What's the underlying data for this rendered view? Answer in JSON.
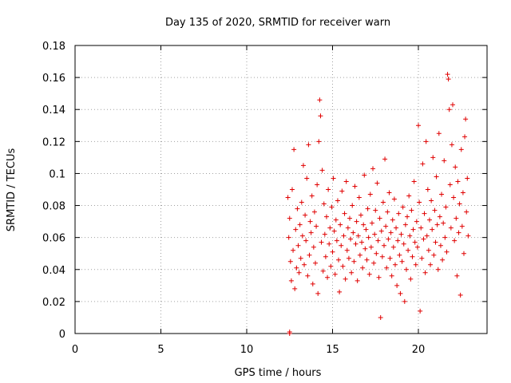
{
  "chart_data": {
    "type": "scatter",
    "title": "Day 135 of 2020, SRMTID for receiver warn",
    "xlabel": "GPS time / hours",
    "ylabel": "SRMTID / TECUs",
    "xlim": [
      0,
      24
    ],
    "ylim": [
      0,
      0.18
    ],
    "xticks": [
      0,
      5,
      10,
      15,
      20
    ],
    "xtick_labels": [
      "0",
      "5",
      "10",
      "15",
      "20"
    ],
    "yticks": [
      0,
      0.02,
      0.04,
      0.06,
      0.08,
      0.1,
      0.12,
      0.14,
      0.16,
      0.18
    ],
    "ytick_labels": [
      "0",
      "0.02",
      "0.04",
      "0.06",
      "0.08",
      "0.1",
      "0.12",
      "0.14",
      "0.16",
      "0.18"
    ],
    "grid": true,
    "marker": "+",
    "color": "#e00000",
    "series": [
      {
        "name": "SRMTID",
        "points": [
          [
            12.5,
            0.0
          ],
          [
            12.5,
            0.001
          ],
          [
            12.4,
            0.085
          ],
          [
            12.45,
            0.06
          ],
          [
            12.5,
            0.072
          ],
          [
            12.55,
            0.045
          ],
          [
            12.6,
            0.033
          ],
          [
            12.65,
            0.09
          ],
          [
            12.7,
            0.052
          ],
          [
            12.75,
            0.115
          ],
          [
            12.8,
            0.028
          ],
          [
            12.85,
            0.065
          ],
          [
            12.9,
            0.041
          ],
          [
            12.95,
            0.078
          ],
          [
            13.0,
            0.055
          ],
          [
            13.05,
            0.038
          ],
          [
            13.1,
            0.068
          ],
          [
            13.15,
            0.047
          ],
          [
            13.2,
            0.082
          ],
          [
            13.25,
            0.061
          ],
          [
            13.3,
            0.105
          ],
          [
            13.35,
            0.043
          ],
          [
            13.4,
            0.074
          ],
          [
            13.45,
            0.058
          ],
          [
            13.5,
            0.097
          ],
          [
            13.55,
            0.036
          ],
          [
            13.6,
            0.118
          ],
          [
            13.65,
            0.049
          ],
          [
            13.7,
            0.07
          ],
          [
            13.75,
            0.063
          ],
          [
            13.8,
            0.086
          ],
          [
            13.85,
            0.031
          ],
          [
            13.9,
            0.054
          ],
          [
            13.95,
            0.076
          ],
          [
            14.0,
            0.044
          ],
          [
            14.05,
            0.067
          ],
          [
            14.1,
            0.093
          ],
          [
            14.15,
            0.025
          ],
          [
            14.2,
            0.12
          ],
          [
            14.25,
            0.146
          ],
          [
            14.3,
            0.136
          ],
          [
            14.35,
            0.057
          ],
          [
            14.4,
            0.102
          ],
          [
            14.45,
            0.039
          ],
          [
            14.5,
            0.081
          ],
          [
            14.55,
            0.062
          ],
          [
            14.6,
            0.048
          ],
          [
            14.65,
            0.073
          ],
          [
            14.7,
            0.035
          ],
          [
            14.75,
            0.09
          ],
          [
            14.8,
            0.056
          ],
          [
            14.85,
            0.066
          ],
          [
            14.9,
            0.042
          ],
          [
            14.95,
            0.079
          ],
          [
            15.0,
            0.051
          ],
          [
            15.05,
            0.097
          ],
          [
            15.1,
            0.064
          ],
          [
            15.15,
            0.037
          ],
          [
            15.2,
            0.071
          ],
          [
            15.25,
            0.058
          ],
          [
            15.3,
            0.083
          ],
          [
            15.35,
            0.046
          ],
          [
            15.4,
            0.026
          ],
          [
            15.45,
            0.068
          ],
          [
            15.5,
            0.055
          ],
          [
            15.55,
            0.089
          ],
          [
            15.6,
            0.042
          ],
          [
            15.65,
            0.061
          ],
          [
            15.7,
            0.075
          ],
          [
            15.75,
            0.034
          ],
          [
            15.8,
            0.095
          ],
          [
            15.85,
            0.052
          ],
          [
            15.9,
            0.066
          ],
          [
            15.95,
            0.047
          ],
          [
            16.0,
            0.072
          ],
          [
            16.05,
            0.059
          ],
          [
            16.1,
            0.038
          ],
          [
            16.15,
            0.08
          ],
          [
            16.2,
            0.063
          ],
          [
            16.25,
            0.045
          ],
          [
            16.3,
            0.092
          ],
          [
            16.35,
            0.056
          ],
          [
            16.4,
            0.07
          ],
          [
            16.45,
            0.033
          ],
          [
            16.5,
            0.061
          ],
          [
            16.55,
            0.085
          ],
          [
            16.6,
            0.049
          ],
          [
            16.65,
            0.074
          ],
          [
            16.7,
            0.057
          ],
          [
            16.75,
            0.041
          ],
          [
            16.8,
            0.068
          ],
          [
            16.85,
            0.099
          ],
          [
            16.9,
            0.053
          ],
          [
            16.95,
            0.065
          ],
          [
            17.0,
            0.046
          ],
          [
            17.05,
            0.078
          ],
          [
            17.1,
            0.06
          ],
          [
            17.15,
            0.037
          ],
          [
            17.2,
            0.087
          ],
          [
            17.25,
            0.054
          ],
          [
            17.3,
            0.069
          ],
          [
            17.35,
            0.103
          ],
          [
            17.4,
            0.044
          ],
          [
            17.45,
            0.062
          ],
          [
            17.5,
            0.077
          ],
          [
            17.55,
            0.05
          ],
          [
            17.6,
            0.094
          ],
          [
            17.65,
            0.058
          ],
          [
            17.7,
            0.035
          ],
          [
            17.75,
            0.072
          ],
          [
            17.8,
            0.01
          ],
          [
            17.85,
            0.064
          ],
          [
            17.9,
            0.048
          ],
          [
            17.95,
            0.082
          ],
          [
            18.0,
            0.055
          ],
          [
            18.05,
            0.109
          ],
          [
            18.1,
            0.067
          ],
          [
            18.15,
            0.041
          ],
          [
            18.2,
            0.076
          ],
          [
            18.25,
            0.059
          ],
          [
            18.3,
            0.088
          ],
          [
            18.35,
            0.047
          ],
          [
            18.4,
            0.063
          ],
          [
            18.45,
            0.036
          ],
          [
            18.5,
            0.071
          ],
          [
            18.55,
            0.054
          ],
          [
            18.6,
            0.084
          ],
          [
            18.65,
            0.043
          ],
          [
            18.7,
            0.066
          ],
          [
            18.75,
            0.03
          ],
          [
            18.8,
            0.058
          ],
          [
            18.85,
            0.075
          ],
          [
            18.9,
            0.049
          ],
          [
            18.95,
            0.025
          ],
          [
            19.0,
            0.062
          ],
          [
            19.05,
            0.045
          ],
          [
            19.1,
            0.079
          ],
          [
            19.15,
            0.056
          ],
          [
            19.2,
            0.02
          ],
          [
            19.25,
            0.068
          ],
          [
            19.3,
            0.04
          ],
          [
            19.35,
            0.073
          ],
          [
            19.4,
            0.052
          ],
          [
            19.45,
            0.086
          ],
          [
            19.5,
            0.061
          ],
          [
            19.55,
            0.034
          ],
          [
            19.6,
            0.077
          ],
          [
            19.65,
            0.048
          ],
          [
            19.7,
            0.065
          ],
          [
            19.75,
            0.095
          ],
          [
            19.8,
            0.057
          ],
          [
            19.85,
            0.043
          ],
          [
            19.9,
            0.07
          ],
          [
            19.95,
            0.054
          ],
          [
            20.0,
            0.13
          ],
          [
            20.05,
            0.082
          ],
          [
            20.1,
            0.014
          ],
          [
            20.15,
            0.066
          ],
          [
            20.2,
            0.047
          ],
          [
            20.25,
            0.106
          ],
          [
            20.3,
            0.059
          ],
          [
            20.35,
            0.075
          ],
          [
            20.4,
            0.038
          ],
          [
            20.45,
            0.12
          ],
          [
            20.5,
            0.061
          ],
          [
            20.55,
            0.09
          ],
          [
            20.6,
            0.052
          ],
          [
            20.65,
            0.071
          ],
          [
            20.7,
            0.043
          ],
          [
            20.75,
            0.083
          ],
          [
            20.8,
            0.065
          ],
          [
            20.85,
            0.11
          ],
          [
            20.9,
            0.049
          ],
          [
            20.95,
            0.077
          ],
          [
            21.0,
            0.057
          ],
          [
            21.05,
            0.098
          ],
          [
            21.1,
            0.068
          ],
          [
            21.15,
            0.04
          ],
          [
            21.2,
            0.125
          ],
          [
            21.25,
            0.073
          ],
          [
            21.3,
            0.055
          ],
          [
            21.35,
            0.087
          ],
          [
            21.4,
            0.046
          ],
          [
            21.45,
            0.069
          ],
          [
            21.5,
            0.108
          ],
          [
            21.55,
            0.06
          ],
          [
            21.6,
            0.079
          ],
          [
            21.65,
            0.051
          ],
          [
            21.7,
            0.162
          ],
          [
            21.75,
            0.159
          ],
          [
            21.8,
            0.14
          ],
          [
            21.85,
            0.093
          ],
          [
            21.9,
            0.066
          ],
          [
            21.95,
            0.118
          ],
          [
            22.0,
            0.143
          ],
          [
            22.05,
            0.085
          ],
          [
            22.1,
            0.058
          ],
          [
            22.15,
            0.104
          ],
          [
            22.2,
            0.072
          ],
          [
            22.25,
            0.036
          ],
          [
            22.3,
            0.095
          ],
          [
            22.35,
            0.063
          ],
          [
            22.4,
            0.081
          ],
          [
            22.45,
            0.024
          ],
          [
            22.5,
            0.115
          ],
          [
            22.55,
            0.067
          ],
          [
            22.6,
            0.088
          ],
          [
            22.65,
            0.05
          ],
          [
            22.7,
            0.123
          ],
          [
            22.75,
            0.134
          ],
          [
            22.8,
            0.076
          ],
          [
            22.85,
            0.097
          ],
          [
            22.9,
            0.061
          ]
        ]
      }
    ]
  }
}
